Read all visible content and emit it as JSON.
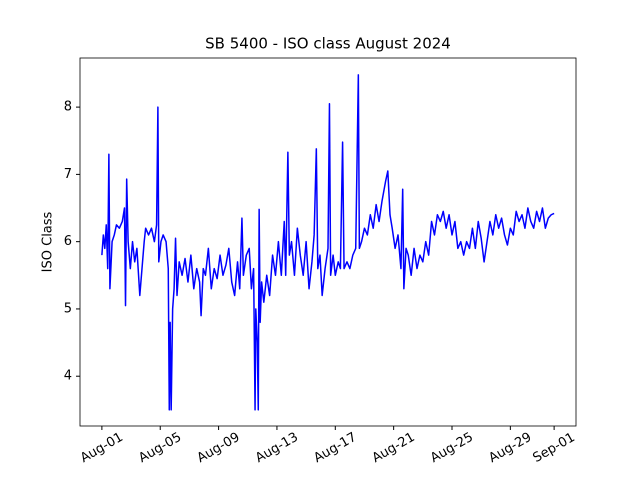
{
  "chart_data": {
    "type": "line",
    "title": "SB 5400 - ISO class August 2024",
    "y_label": "ISO Class",
    "color": "#0000ff",
    "x": [
      0,
      0.1,
      0.2,
      0.3,
      0.4,
      0.48,
      0.55,
      0.7,
      0.85,
      1.0,
      1.2,
      1.4,
      1.55,
      1.62,
      1.7,
      1.8,
      1.95,
      2.1,
      2.25,
      2.4,
      2.6,
      2.75,
      2.9,
      3.0,
      3.2,
      3.4,
      3.6,
      3.75,
      3.84,
      3.9,
      4.05,
      4.2,
      4.4,
      4.55,
      4.62,
      4.68,
      4.75,
      4.85,
      4.95,
      5.05,
      5.15,
      5.3,
      5.5,
      5.7,
      5.9,
      6.1,
      6.3,
      6.5,
      6.7,
      6.8,
      6.95,
      7.1,
      7.3,
      7.5,
      7.7,
      7.9,
      8.1,
      8.3,
      8.5,
      8.7,
      8.9,
      9.1,
      9.3,
      9.45,
      9.6,
      9.7,
      9.9,
      10.1,
      10.25,
      10.4,
      10.5,
      10.55,
      10.65,
      10.72,
      10.78,
      10.85,
      10.95,
      11.1,
      11.3,
      11.5,
      11.7,
      11.9,
      12.1,
      12.3,
      12.5,
      12.6,
      12.75,
      12.85,
      13.0,
      13.2,
      13.4,
      13.6,
      13.8,
      14.0,
      14.2,
      14.4,
      14.55,
      14.7,
      14.8,
      14.95,
      15.1,
      15.3,
      15.5,
      15.6,
      15.68,
      15.85,
      16.0,
      16.2,
      16.35,
      16.5,
      16.6,
      16.8,
      17.0,
      17.2,
      17.4,
      17.58,
      17.65,
      17.8,
      18.0,
      18.2,
      18.4,
      18.6,
      18.8,
      19.0,
      19.2,
      19.45,
      19.6,
      19.75,
      19.9,
      20.1,
      20.3,
      20.5,
      20.62,
      20.7,
      20.85,
      21.0,
      21.2,
      21.4,
      21.6,
      21.8,
      22.0,
      22.2,
      22.4,
      22.6,
      22.8,
      23.0,
      23.2,
      23.4,
      23.6,
      23.8,
      24.0,
      24.2,
      24.4,
      24.6,
      24.8,
      25.0,
      25.2,
      25.4,
      25.6,
      25.8,
      26.0,
      26.2,
      26.4,
      26.6,
      26.8,
      27.0,
      27.2,
      27.4,
      27.6,
      27.8,
      28.0,
      28.2,
      28.4,
      28.6,
      28.8,
      29.0,
      29.2,
      29.4,
      29.6,
      29.8,
      30.0,
      30.2,
      30.4,
      30.6,
      30.8,
      31.0
    ],
    "values": [
      5.8,
      6.1,
      5.9,
      6.25,
      5.6,
      7.3,
      5.3,
      6.0,
      6.1,
      6.25,
      6.2,
      6.3,
      6.5,
      5.05,
      6.93,
      6.0,
      5.6,
      6.0,
      5.7,
      5.9,
      5.2,
      5.6,
      6.0,
      6.2,
      6.1,
      6.2,
      6.0,
      6.25,
      8.0,
      5.7,
      6.0,
      6.1,
      6.0,
      5.6,
      3.5,
      4.8,
      3.5,
      5.0,
      5.3,
      6.05,
      5.2,
      5.7,
      5.5,
      5.75,
      5.4,
      5.8,
      5.3,
      5.6,
      5.4,
      4.9,
      5.6,
      5.5,
      5.9,
      5.3,
      5.6,
      5.45,
      5.8,
      5.5,
      5.65,
      5.9,
      5.4,
      5.2,
      5.7,
      5.3,
      6.35,
      5.5,
      5.8,
      5.9,
      5.3,
      5.6,
      3.5,
      5.0,
      4.5,
      3.5,
      6.48,
      4.8,
      5.4,
      5.1,
      5.5,
      5.2,
      5.8,
      5.5,
      6.0,
      5.5,
      6.3,
      5.5,
      7.33,
      5.8,
      6.0,
      5.5,
      6.2,
      5.8,
      5.5,
      6.0,
      5.3,
      5.7,
      6.1,
      7.38,
      5.6,
      5.8,
      5.2,
      5.6,
      5.9,
      8.05,
      5.5,
      5.8,
      5.5,
      5.7,
      5.6,
      7.48,
      5.6,
      5.7,
      5.6,
      5.8,
      5.9,
      8.48,
      5.9,
      6.0,
      6.2,
      6.1,
      6.4,
      6.2,
      6.55,
      6.3,
      6.6,
      6.9,
      7.05,
      6.4,
      6.2,
      5.9,
      6.1,
      5.6,
      6.78,
      5.3,
      5.9,
      5.8,
      5.5,
      5.9,
      5.6,
      5.8,
      5.7,
      6.0,
      5.8,
      6.3,
      6.1,
      6.4,
      6.3,
      6.45,
      6.2,
      6.4,
      6.1,
      6.3,
      5.9,
      6.0,
      5.8,
      6.0,
      5.9,
      6.2,
      5.9,
      6.3,
      6.05,
      5.7,
      6.0,
      6.3,
      6.1,
      6.4,
      6.2,
      6.35,
      6.1,
      5.95,
      6.2,
      6.1,
      6.45,
      6.3,
      6.4,
      6.2,
      6.5,
      6.3,
      6.2,
      6.45,
      6.3,
      6.5,
      6.2,
      6.35,
      6.4,
      6.42
    ],
    "xlim": [
      -1.5,
      32.5
    ],
    "xticks": [
      {
        "value": 0,
        "label": "Aug-01"
      },
      {
        "value": 4,
        "label": "Aug-05"
      },
      {
        "value": 8,
        "label": "Aug-09"
      },
      {
        "value": 12,
        "label": "Aug-13"
      },
      {
        "value": 16,
        "label": "Aug-17"
      },
      {
        "value": 20,
        "label": "Aug-21"
      },
      {
        "value": 24,
        "label": "Aug-25"
      },
      {
        "value": 28,
        "label": "Aug-29"
      },
      {
        "value": 31,
        "label": "Sep-01"
      }
    ],
    "ylim": [
      3.26,
      8.73
    ],
    "yticks": [
      4,
      5,
      6,
      7,
      8
    ]
  }
}
